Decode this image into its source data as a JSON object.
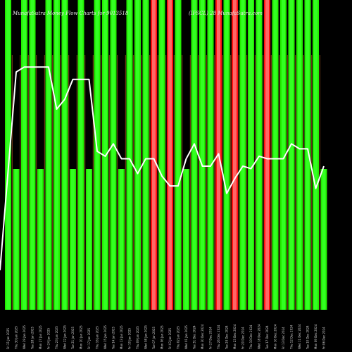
{
  "chart_data": {
    "type": "bar",
    "title": "MunafaSutra Money Flow Charts for 9013518",
    "title_right": "(IFSCL) 28 MunafaSutra.com",
    "background": "#000000",
    "colors": {
      "up": "#22ee00",
      "up_inner": "#33ff22",
      "down": "#ff1111",
      "down_inner": "#ff6666",
      "line": "#ffffff",
      "thin_line": "#a0521e"
    },
    "categories": [
      "Fri 31 Jan 2025",
      "Thu 30 Jan 2025",
      "Wed 29 Jan 2025",
      "Tue 28 Jan 2025",
      "Mon 27 Jan 2025",
      "Fri 24 Jan 2025",
      "Thu 23 Jan 2025",
      "Wed 22 Jan 2025",
      "Tue 21 Jan 2025",
      "Mon 20 Jan 2025",
      "Fri 17 Jan 2025",
      "Thu 16 Jan 2025",
      "Wed 15 Jan 2025",
      "Tue 14 Jan 2025",
      "Mon 13 Jan 2025",
      "Fri 10 Jan 2025",
      "Thu 09 Jan 2025",
      "Wed 08 Jan 2025",
      "Tue 07 Jan 2025",
      "Mon 06 Jan 2025",
      "Fri 03 Jan 2025",
      "Thu 02 Jan 2025",
      "Wed 01 Jan 2025",
      "Tue 31 Dec 2024",
      "Mon 30 Dec 2024",
      "Fri 27 Dec 2024",
      "Thu 26 Dec 2024",
      "Tue 24 Dec 2024",
      "Mon 23 Dec 2024",
      "Fri 20 Dec 2024",
      "Thu 19 Dec 2024",
      "Wed 18 Dec 2024",
      "Tue 17 Dec 2024",
      "Mon 16 Dec 2024",
      "Fri 13 Dec 2024",
      "Thu 12 Dec 2024",
      "Wed 11 Dec 2024",
      "Tue 10 Dec 2024",
      "Mon 09 Dec 2024",
      "Fri 06 Dec 2024"
    ],
    "bar_color": [
      "green",
      "green",
      "green",
      "green",
      "green",
      "green",
      "green",
      "green",
      "green",
      "green",
      "green",
      "green",
      "green",
      "green",
      "green",
      "green",
      "green",
      "green",
      "red",
      "green",
      "red",
      "green",
      "green",
      "green",
      "green",
      "green",
      "red",
      "green",
      "red",
      "green",
      "green",
      "green",
      "red",
      "green",
      "green",
      "green",
      "green",
      "green",
      "green",
      "green"
    ],
    "bar_level": [
      "full",
      "short",
      "full",
      "full",
      "short",
      "full",
      "full",
      "full",
      "short",
      "full",
      "short",
      "full",
      "full",
      "full",
      "short",
      "full",
      "full",
      "full",
      "full",
      "full",
      "full",
      "full",
      "short",
      "full",
      "full",
      "full",
      "full",
      "full",
      "full",
      "full",
      "full",
      "full",
      "full",
      "full",
      "full",
      "full",
      "full",
      "full",
      "full",
      "short"
    ],
    "line_values": [
      8,
      88,
      90,
      90,
      90,
      90,
      73,
      77,
      85,
      85,
      85,
      56,
      54,
      59,
      53,
      53,
      47,
      53,
      53,
      46,
      42,
      42,
      53,
      59,
      50,
      50,
      55,
      39,
      45,
      50,
      49,
      54,
      53,
      53,
      53,
      59,
      57,
      57,
      41,
      50
    ],
    "ylim": [
      0,
      100
    ]
  }
}
